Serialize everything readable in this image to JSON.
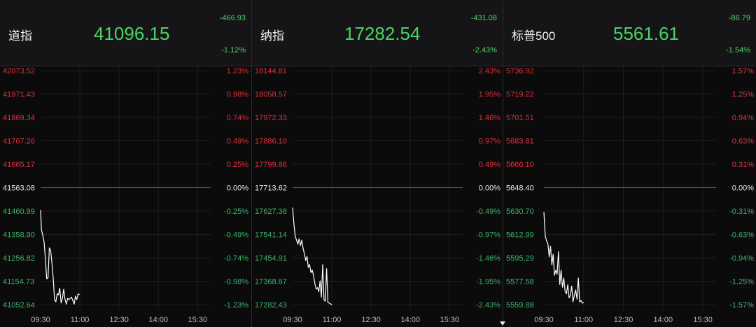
{
  "colors": {
    "up": "#e0323c",
    "down": "#3fb36a",
    "neutral": "#e8e8e8",
    "price_green": "#4cd264",
    "line": "#ffffff",
    "grid": "#1e1e20",
    "axis": "#bdbdbd"
  },
  "time_labels": [
    "09:30",
    "11:00",
    "12:30",
    "14:00",
    "15:30"
  ],
  "panels": [
    {
      "name": "道指",
      "price": "41096.15",
      "change": "-466.93",
      "change_pct": "-1.12%",
      "left_labels": [
        "42073.52",
        "41971.43",
        "41869.34",
        "41767.26",
        "41665.17",
        "41563.08",
        "41460.99",
        "41358.90",
        "41256.82",
        "41154.73",
        "41052.64"
      ],
      "right_labels": [
        "1.23%",
        "0.98%",
        "0.74%",
        "0.49%",
        "0.25%",
        "0.00%",
        "-0.25%",
        "-0.49%",
        "-0.74%",
        "-0.98%",
        "-1.23%"
      ]
    },
    {
      "name": "纳指",
      "price": "17282.54",
      "change": "-431.08",
      "change_pct": "-2.43%",
      "left_labels": [
        "18144.81",
        "18058.57",
        "17972.33",
        "17886.10",
        "17799.86",
        "17713.62",
        "17627.38",
        "17541.14",
        "17454.91",
        "17368.67",
        "17282.43"
      ],
      "right_labels": [
        "2.43%",
        "1.95%",
        "1.46%",
        "0.97%",
        "0.49%",
        "0.00%",
        "-0.49%",
        "-0.97%",
        "-1.46%",
        "-1.95%",
        "-2.43%"
      ]
    },
    {
      "name": "标普500",
      "price": "5561.61",
      "change": "-86.79",
      "change_pct": "-1.54%",
      "left_labels": [
        "5736.92",
        "5719.22",
        "5701.51",
        "5683.81",
        "5666.10",
        "5648.40",
        "5630.70",
        "5612.99",
        "5595.29",
        "5577.58",
        "5559.88"
      ],
      "right_labels": [
        "1.57%",
        "1.25%",
        "0.94%",
        "0.63%",
        "0.31%",
        "0.00%",
        "-0.31%",
        "-0.63%",
        "-0.94%",
        "-1.25%",
        "-1.57%"
      ]
    }
  ],
  "chart_data": [
    {
      "type": "line",
      "title": "道指",
      "x_range": [
        "09:30",
        "16:00"
      ],
      "ylim": [
        41052.64,
        42073.52
      ],
      "x": [
        0,
        2,
        5,
        8,
        11,
        14,
        17,
        20,
        23,
        26,
        29,
        32,
        35,
        38,
        41,
        44,
        47,
        50,
        53,
        56,
        59,
        62,
        65,
        68,
        71,
        74,
        77,
        80,
        83,
        86,
        89
      ],
      "values": [
        41465,
        41380,
        41355,
        41325,
        41250,
        41165,
        41170,
        41300,
        41290,
        41235,
        41165,
        41075,
        41065,
        41100,
        41095,
        41125,
        41060,
        41080,
        41120,
        41075,
        41055,
        41080,
        41075,
        41080,
        41085,
        41070,
        41055,
        41090,
        41075,
        41100,
        41096
      ]
    },
    {
      "type": "line",
      "title": "纳指",
      "x_range": [
        "09:30",
        "16:00"
      ],
      "ylim": [
        17282.43,
        18144.81
      ],
      "x": [
        0,
        3,
        6,
        9,
        12,
        15,
        18,
        21,
        24,
        27,
        30,
        33,
        36,
        39,
        42,
        45,
        48,
        51,
        54,
        57,
        60,
        63,
        66,
        69,
        72,
        75,
        78,
        81,
        84,
        87,
        90
      ],
      "values": [
        17640,
        17580,
        17535,
        17520,
        17505,
        17525,
        17500,
        17520,
        17490,
        17470,
        17445,
        17460,
        17420,
        17430,
        17400,
        17410,
        17390,
        17360,
        17340,
        17345,
        17330,
        17370,
        17310,
        17430,
        17300,
        17295,
        17415,
        17290,
        17288,
        17285,
        17283
      ]
    },
    {
      "type": "line",
      "title": "标普500",
      "x_range": [
        "09:30",
        "16:00"
      ],
      "ylim": [
        5559.88,
        5736.92
      ],
      "x": [
        0,
        3,
        6,
        9,
        12,
        15,
        18,
        21,
        24,
        27,
        30,
        33,
        36,
        39,
        42,
        45,
        48,
        51,
        54,
        57,
        60,
        63,
        66,
        69,
        72,
        75,
        78,
        81,
        84,
        87,
        90
      ],
      "values": [
        5630,
        5612,
        5608,
        5606,
        5596,
        5604,
        5590,
        5598,
        5582,
        5586,
        5583,
        5600,
        5575,
        5586,
        5573,
        5580,
        5570,
        5568,
        5575,
        5565,
        5567,
        5574,
        5562,
        5567,
        5571,
        5564,
        5580,
        5562,
        5563,
        5561,
        5561.61
      ]
    }
  ]
}
